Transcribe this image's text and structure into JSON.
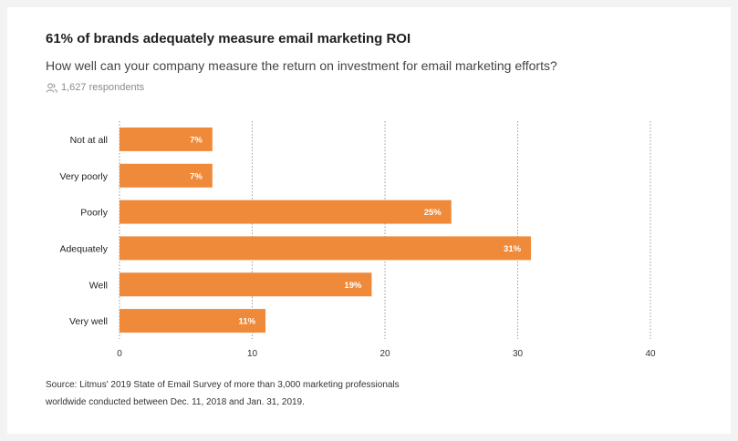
{
  "header": {
    "title": "61% of brands adequately measure email marketing ROI",
    "subtitle": "How well can your company measure the return on investment for email marketing efforts?",
    "respondents": "1,627 respondents",
    "respondents_icon": "people-icon"
  },
  "footer": {
    "source_line1": "Source: Litmus' 2019 State of Email Survey of more than 3,000 marketing professionals",
    "source_line2": "worldwide conducted between Dec. 11, 2018 and Jan. 31, 2019."
  },
  "colors": {
    "bar": "#ef8a3a",
    "label_on_bar": "#ffffff",
    "grid": "#9a9a9a"
  },
  "chart_data": {
    "type": "bar",
    "orientation": "horizontal",
    "categories": [
      "Not at all",
      "Very poorly",
      "Poorly",
      "Adequately",
      "Well",
      "Very well"
    ],
    "values": [
      7,
      7,
      25,
      31,
      19,
      11
    ],
    "data_labels": [
      "7%",
      "7%",
      "25%",
      "31%",
      "19%",
      "11%"
    ],
    "xlim": [
      0,
      40
    ],
    "xticks": [
      0,
      10,
      20,
      30,
      40
    ],
    "grid": true,
    "title": "",
    "xlabel": "",
    "ylabel": ""
  }
}
